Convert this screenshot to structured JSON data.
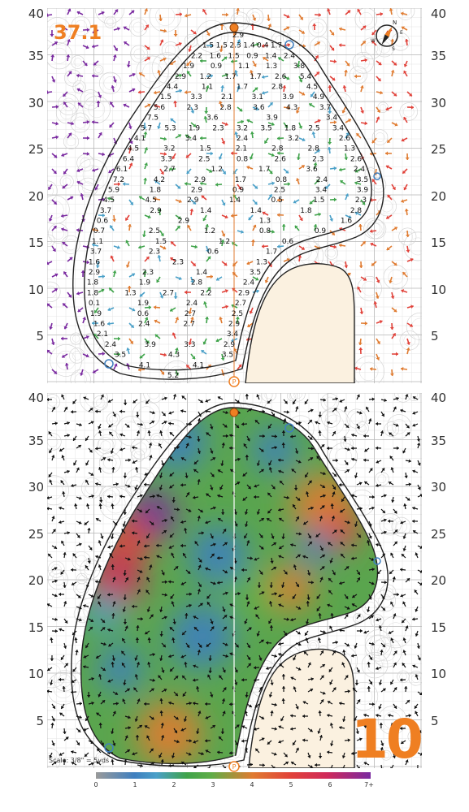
{
  "hole": {
    "number": "10",
    "percent": "37.1",
    "scale": "Scale: 3/8\" = 5yds"
  },
  "axis_labels": [
    "40",
    "35",
    "30",
    "25",
    "20",
    "15",
    "10",
    "5"
  ],
  "compass": {
    "n": "N",
    "e": "E",
    "s": "S",
    "w": "W"
  },
  "legend": {
    "ticks": [
      "0",
      "1",
      "2",
      "3",
      "4",
      "5",
      "6",
      "7+"
    ],
    "colors": [
      "#9a9a9a",
      "#3f7fbf",
      "#4aa0c8",
      "#3fa34a",
      "#e07b30",
      "#e1423a",
      "#d02a5a",
      "#7a2aa0"
    ]
  },
  "slope_labels": [
    [
      "2.9"
    ],
    [
      "1.5",
      "1.5",
      "2.3",
      "1.4",
      "0.4",
      "1.7"
    ],
    [
      "2.2",
      "1.6",
      "1.5",
      "0.9",
      "1.4",
      "2.4"
    ],
    [
      "1.9",
      "0.9",
      "1.1",
      "1.3",
      "3.8"
    ],
    [
      "2.9",
      "1.2",
      "1.7",
      "1.7",
      "2.6",
      "5.4"
    ],
    [
      "4.4",
      "1.1",
      "1.7",
      "2.8",
      "4.5"
    ],
    [
      "1.5",
      "3.3",
      "2.1",
      "3.1",
      "3.9",
      "4.9"
    ],
    [
      "5.6",
      "2.3",
      "2.8",
      "3.6",
      "4.3",
      "3.7"
    ],
    [
      "7.5",
      "3.6",
      "3.9",
      "3.4"
    ],
    [
      "5.7",
      "5.3",
      "1.9",
      "2.3",
      "3.2",
      "3.5",
      "1.8",
      "2.5",
      "3.4"
    ],
    [
      "4.1",
      "3.4",
      "2.4",
      "3.2",
      "2.6"
    ],
    [
      "4.5",
      "3.2",
      "1.5",
      "2.1",
      "2.8",
      "2.8",
      "1.3"
    ],
    [
      "6.4",
      "3.3",
      "2.5",
      "0.8",
      "2.6",
      "2.3",
      "2.6"
    ],
    [
      "6.1",
      "2.7",
      "1.2",
      "1.7",
      "3.6",
      "2.4"
    ],
    [
      "7.2",
      "4.2",
      "2.9",
      "1.7",
      "0.8",
      "2.4",
      "3.5"
    ],
    [
      "5.9",
      "1.8",
      "2.9",
      "0.9",
      "2.5",
      "3.4",
      "3.9"
    ],
    [
      "4.5",
      "4.5",
      "2.9",
      "1.4",
      "0.5",
      "1.5",
      "2.3"
    ],
    [
      "3.7",
      "2.9",
      "1.4",
      "1.4",
      "1.8",
      "2.8"
    ],
    [
      "0.6",
      "2.9",
      "1.3",
      "1.6"
    ],
    [
      "0.7",
      "2.5",
      "1.2",
      "0.8",
      "0.9"
    ],
    [
      "1.1",
      "1.5",
      "1.2",
      "0.6"
    ],
    [
      "3.7",
      "2.3",
      "0.6",
      "1.7"
    ],
    [
      "1.6",
      "2.3",
      "1.3"
    ],
    [
      "2.9",
      "2.3",
      "1.4",
      "3.5"
    ],
    [
      "1.8",
      "1.9",
      "2.8",
      "2.4"
    ],
    [
      "1.8",
      "1.3",
      "2.7",
      "2.2",
      "2.9"
    ],
    [
      "0.1",
      "1.9",
      "2.4",
      "2.7"
    ],
    [
      "1.9",
      "0.6",
      "2.7",
      "2.5"
    ],
    [
      "1.6",
      "2.4",
      "2.7",
      "2.9"
    ],
    [
      "2.1",
      "3.4"
    ],
    [
      "2.4",
      "3.9",
      "3.3",
      "2.9"
    ],
    [
      "3.5",
      "4.3",
      "3.5"
    ],
    [
      "4.1",
      "4.1"
    ],
    [
      "5.2"
    ]
  ]
}
